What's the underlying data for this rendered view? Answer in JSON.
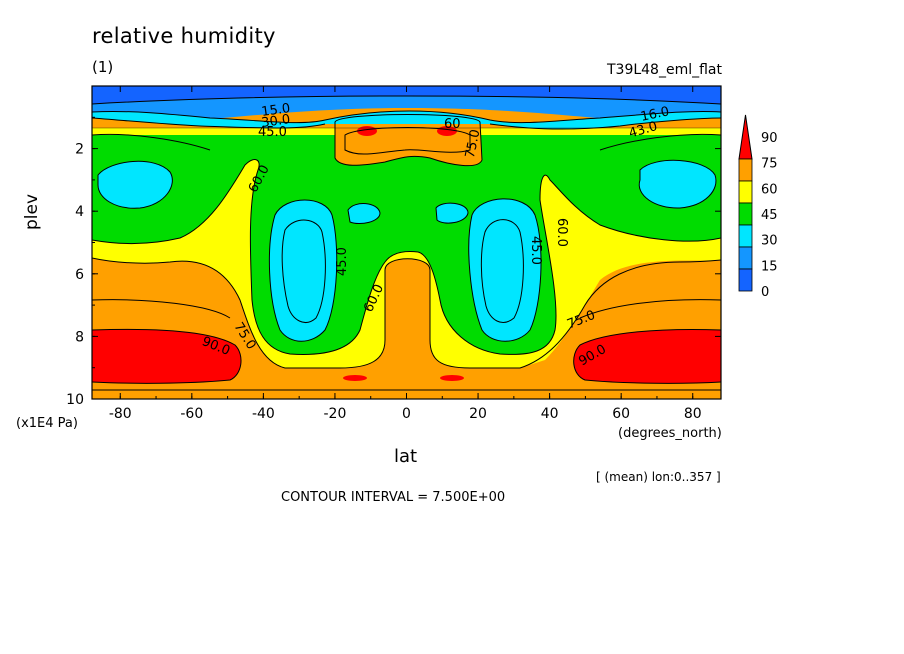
{
  "chart_data": {
    "type": "heatmap",
    "variant": "filled-contour",
    "title": "relative humidity",
    "subtitle": "(1)",
    "run_name": "T39L48_eml_flat",
    "xlabel": "lat",
    "xunit": "(degrees_north)",
    "ylabel": "plev",
    "yunit": "(x1E4 Pa)",
    "x_ticks": [
      -80,
      -60,
      -40,
      -20,
      0,
      20,
      40,
      60,
      80
    ],
    "y_ticks": [
      2,
      4,
      6,
      8,
      10
    ],
    "xlim": [
      -87.9,
      87.9
    ],
    "ylim": [
      10,
      0
    ],
    "y_inverted": true,
    "mean_note": "[ (mean) lon:0..357 ]",
    "contour_interval_note": "CONTOUR INTERVAL = 7.500E+00",
    "contour_labels": [
      "15.0",
      "30.0",
      "45.0",
      "60.0",
      "75.0",
      "90.0",
      "45.0",
      "60.0",
      "60.0",
      "45.0",
      "60.0",
      "75.0",
      "75.0",
      "90.0",
      "16.0",
      "43.0",
      "60",
      "75.0"
    ],
    "colorbar": {
      "levels": [
        0,
        15,
        30,
        45,
        60,
        75,
        90
      ],
      "level_labels": [
        "90",
        "75",
        "60",
        "45",
        "30",
        "15",
        "0"
      ],
      "colors": [
        "#1464ff",
        "#1496ff",
        "#00e6ff",
        "#00dc00",
        "#ffff00",
        "#ffa000",
        "#ff0000"
      ]
    },
    "colors": {
      "blue": "#1464ff",
      "mid_blue": "#1496ff",
      "cyan": "#00e6ff",
      "green": "#00dc00",
      "yellow": "#ffff00",
      "orange": "#ffa000",
      "red": "#ff0000"
    }
  }
}
